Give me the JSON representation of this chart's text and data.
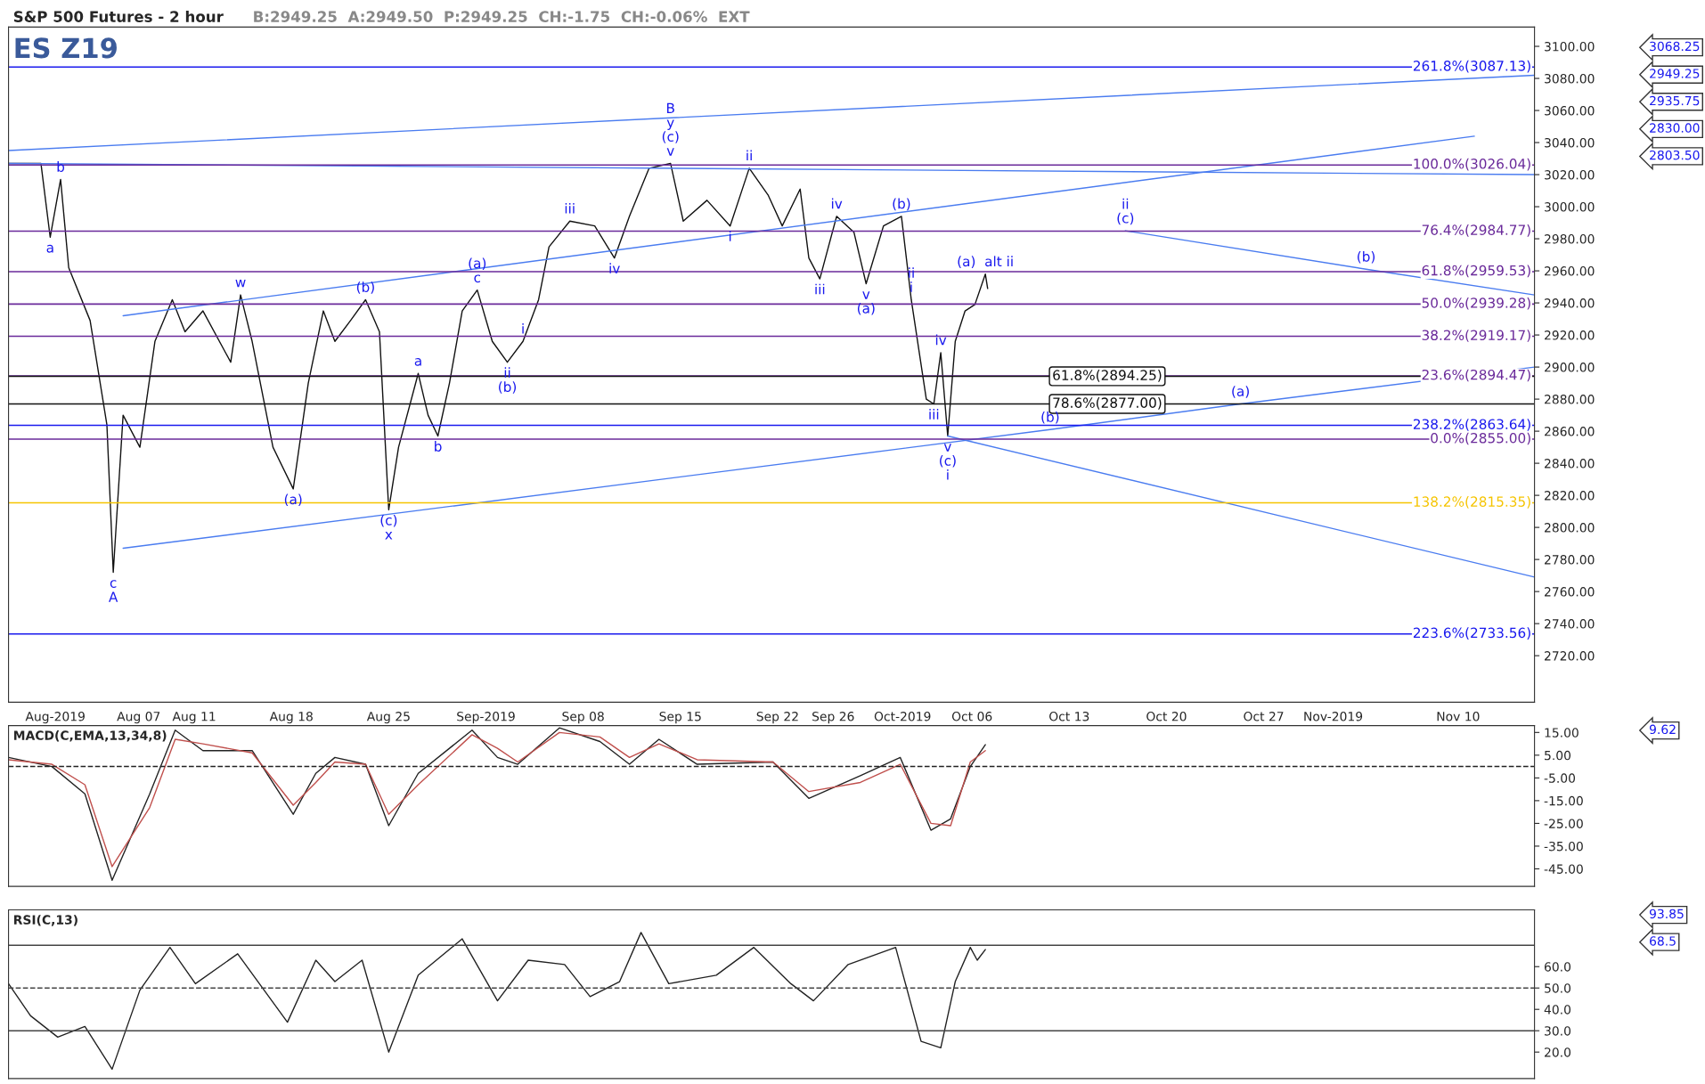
{
  "chart_data": [
    {
      "type": "line",
      "title": "S&P 500 Futures - 2 hour",
      "subtitle": "B:2949.25  A:2949.50  P:2949.25  CH:-1.75  CH:-0.06%  EXT",
      "xlim": [
        "2019-07-28T15:00",
        "2019-11-15T12:00"
      ],
      "ylim": [
        2691,
        3112
      ],
      "xticks": [
        {
          "value": "2019-08-01",
          "label": "Aug-2019"
        },
        {
          "value": "2019-08-07",
          "label": "Aug 07"
        },
        {
          "value": "2019-08-11",
          "label": "Aug 11"
        },
        {
          "value": "2019-08-18",
          "label": "Aug 18"
        },
        {
          "value": "2019-08-25",
          "label": "Aug 25"
        },
        {
          "value": "2019-09-01",
          "label": "Sep-2019"
        },
        {
          "value": "2019-09-08",
          "label": "Sep 08"
        },
        {
          "value": "2019-09-15",
          "label": "Sep 15"
        },
        {
          "value": "2019-09-22",
          "label": "Sep 22"
        },
        {
          "value": "2019-09-26",
          "label": "Sep 26"
        },
        {
          "value": "2019-10-01",
          "label": "Oct-2019"
        },
        {
          "value": "2019-10-06",
          "label": "Oct 06"
        },
        {
          "value": "2019-10-13",
          "label": "Oct 13"
        },
        {
          "value": "2019-10-20",
          "label": "Oct 20"
        },
        {
          "value": "2019-10-27",
          "label": "Oct 27"
        },
        {
          "value": "2019-11-01",
          "label": "Nov-2019"
        },
        {
          "value": "2019-11-10",
          "label": "Nov 10"
        }
      ],
      "yticks": [
        {
          "value": 2720,
          "label": "2720.00"
        },
        {
          "value": 2740,
          "label": "2740.00"
        },
        {
          "value": 2760,
          "label": "2760.00"
        },
        {
          "value": 2780,
          "label": "2780.00"
        },
        {
          "value": 2800,
          "label": "2800.00"
        },
        {
          "value": 2820,
          "label": "2820.00"
        },
        {
          "value": 2840,
          "label": "2840.00"
        },
        {
          "value": 2860,
          "label": "2860.00"
        },
        {
          "value": 2880,
          "label": "2880.00"
        },
        {
          "value": 2900,
          "label": "2900.00"
        },
        {
          "value": 2920,
          "label": "2920.00"
        },
        {
          "value": 2940,
          "label": "2940.00"
        },
        {
          "value": 2960,
          "label": "2960.00"
        },
        {
          "value": 2980,
          "label": "2980.00"
        },
        {
          "value": 3000,
          "label": "3000.00"
        },
        {
          "value": 3020,
          "label": "3020.00"
        },
        {
          "value": 3040,
          "label": "3040.00"
        },
        {
          "value": 3060,
          "label": "3060.00"
        },
        {
          "value": 3080,
          "label": "3080.00"
        },
        {
          "value": 3100,
          "label": "3100.00"
        }
      ],
      "series": [
        {
          "color": "#111111",
          "x": [
            "2019-07-28T15:00",
            "2019-07-30T23:00",
            "2019-07-31T15:00",
            "2019-08-01T09:00",
            "2019-08-01T23:00",
            "2019-08-03T12:00",
            "2019-08-04T17:00",
            "2019-08-05T04:00",
            "2019-08-05T21:00",
            "2019-08-07T02:00",
            "2019-08-08T04:00",
            "2019-08-09T10:00",
            "2019-08-10T08:00",
            "2019-08-11T15:00",
            "2019-08-13T15:00",
            "2019-08-14T08:00",
            "2019-08-15T04:00",
            "2019-08-16T16:00",
            "2019-08-18T03:00",
            "2019-08-19T05:00",
            "2019-08-20T07:00",
            "2019-08-21T03:00",
            "2019-08-22T06:00",
            "2019-08-23T08:00",
            "2019-08-24T08:00",
            "2019-08-25T00:00",
            "2019-08-25T17:00",
            "2019-08-27T03:00",
            "2019-08-27T20:00",
            "2019-08-28T13:00",
            "2019-08-29T09:00",
            "2019-08-30T07:00",
            "2019-08-31T09:00",
            "2019-09-01T11:00",
            "2019-09-02T13:00",
            "2019-09-03T16:00",
            "2019-09-04T19:00",
            "2019-09-05T13:00",
            "2019-09-07T01:00",
            "2019-09-08T20:00",
            "2019-09-10T06:00",
            "2019-09-11T08:00",
            "2019-09-12T18:00",
            "2019-09-14T07:00",
            "2019-09-15T05:00",
            "2019-09-16T22:00",
            "2019-09-18T14:00",
            "2019-09-19T23:00",
            "2019-09-21T08:00",
            "2019-09-22T08:00",
            "2019-09-23T15:00",
            "2019-09-24T06:00",
            "2019-09-25T01:00",
            "2019-09-26T06:00",
            "2019-09-27T12:00",
            "2019-09-28T09:00",
            "2019-09-29T15:00",
            "2019-09-30T22:00",
            "2019-10-01T15:00",
            "2019-10-02T17:00",
            "2019-10-03T06:00",
            "2019-10-03T18:00",
            "2019-10-04T06:00",
            "2019-10-04T19:00",
            "2019-10-05T12:00",
            "2019-10-06T05:00",
            "2019-10-06T23:00",
            "2019-10-07T03:00"
          ],
          "values": [
            3027,
            3027,
            2981,
            3017,
            2962,
            2929,
            2864,
            2772,
            2870,
            2850,
            2916,
            2942,
            2922,
            2935,
            2903,
            2945,
            2916,
            2850,
            2824,
            2890,
            2935,
            2916,
            2929,
            2942,
            2922,
            2811,
            2850,
            2896,
            2870,
            2857,
            2890,
            2935,
            2948,
            2916,
            2903,
            2916,
            2942,
            2975,
            2991,
            2988,
            2968,
            2994,
            3024,
            3027,
            2991,
            3004,
            2988,
            3024,
            3007,
            2988,
            3011,
            2968,
            2955,
            2994,
            2984,
            2952,
            2988,
            2994,
            2942,
            2880,
            2877,
            2909,
            2857,
            2916,
            2935,
            2939,
            2958,
            2949
          ]
        },
        {
          "color": "#4a7cf0",
          "x": [
            "2019-07-28T15:00",
            "2019-11-15T12:00"
          ],
          "values": [
            3027,
            3020
          ]
        },
        {
          "color": "#4a7cf0",
          "x": [
            "2019-07-28T15:00",
            "2019-11-15T12:00"
          ],
          "values": [
            3035,
            3082
          ]
        },
        {
          "color": "#4a7cf0",
          "x": [
            "2019-08-05T21:00",
            "2019-11-11T04:00"
          ],
          "values": [
            2932,
            3044
          ]
        },
        {
          "color": "#4a7cf0",
          "x": [
            "2019-08-05T21:00",
            "2019-10-11T15:00",
            "2019-10-25T08:00",
            "2019-11-15T12:00"
          ],
          "values": [
            2787,
            2861,
            2877,
            2900
          ]
        },
        {
          "color": "#4a7cf0",
          "x": [
            "2019-10-04T06:00",
            "2019-11-15T12:00"
          ],
          "values": [
            2857,
            2769
          ]
        },
        {
          "color": "#4a7cf0",
          "x": [
            "2019-10-17T01:00",
            "2019-11-03T09:00",
            "2019-11-15T12:00"
          ],
          "values": [
            2985,
            2961,
            2945
          ]
        }
      ],
      "ref_lines": [
        {
          "axis": "y",
          "value": 3087.13,
          "label": "261.8%(3087.13)",
          "color": "#1a1aee"
        },
        {
          "axis": "y",
          "value": 3026.04,
          "label": "100.0%(3026.04)",
          "color": "#6a2a9a"
        },
        {
          "axis": "y",
          "value": 2984.77,
          "label": "76.4%(2984.77)",
          "color": "#6a2a9a"
        },
        {
          "axis": "y",
          "value": 2959.53,
          "label": "61.8%(2959.53)",
          "color": "#6a2a9a"
        },
        {
          "axis": "y",
          "value": 2939.28,
          "label": "50.0%(2939.28)",
          "color": "#6a2a9a"
        },
        {
          "axis": "y",
          "value": 2919.17,
          "label": "38.2%(2919.17)",
          "color": "#6a2a9a"
        },
        {
          "axis": "y",
          "value": 2894.47,
          "label": "23.6%(2894.47)",
          "color": "#6a2a9a"
        },
        {
          "axis": "y",
          "value": 2894.25,
          "label": "61.8%(2894.25)",
          "color": "#111111"
        },
        {
          "axis": "y",
          "value": 2877.0,
          "label": "78.6%(2877.00)",
          "color": "#111111"
        },
        {
          "axis": "y",
          "value": 2863.64,
          "label": "238.2%(2863.64)",
          "color": "#1a1aee"
        },
        {
          "axis": "y",
          "value": 2855.0,
          "label": "0.0%(2855.00)",
          "color": "#6a2a9a"
        },
        {
          "axis": "y",
          "value": 2815.35,
          "label": "138.2%(2815.35)",
          "color": "#f5c400"
        },
        {
          "axis": "y",
          "value": 2733.56,
          "label": "223.6%(2733.56)",
          "color": "#1a1aee"
        }
      ],
      "annotations": [
        "ES Z19",
        "3068.25",
        "2949.25",
        "2935.75",
        "2830.00",
        "2803.50",
        {
          "text": "B\ny\n(c)\nv",
          "x": "2019-09-14T07:00",
          "y": 3027
        },
        {
          "text": "b",
          "x": "2019-08-01T09:00",
          "y": 3017
        },
        {
          "text": "a",
          "x": "2019-07-31T15:00",
          "y": 2981
        },
        {
          "text": "c\nA",
          "x": "2019-08-05T04:00",
          "y": 2772
        },
        {
          "text": "w",
          "x": "2019-08-14T08:00",
          "y": 2945
        },
        {
          "text": "(b)",
          "x": "2019-08-23T08:00",
          "y": 2942
        },
        {
          "text": "(a)",
          "x": "2019-08-18T03:00",
          "y": 2824
        },
        {
          "text": "(c)\nx",
          "x": "2019-08-25T00:00",
          "y": 2811
        },
        {
          "text": "a",
          "x": "2019-08-27T03:00",
          "y": 2896
        },
        {
          "text": "b",
          "x": "2019-08-28T13:00",
          "y": 2857
        },
        {
          "text": "(a)\nc",
          "x": "2019-08-31T09:00",
          "y": 2948
        },
        {
          "text": "i",
          "x": "2019-09-03T16:00",
          "y": 2916
        },
        {
          "text": "ii\n(b)",
          "x": "2019-09-02T13:00",
          "y": 2903
        },
        {
          "text": "iii",
          "x": "2019-09-07T01:00",
          "y": 2991
        },
        {
          "text": "iv",
          "x": "2019-09-10T06:00",
          "y": 2968
        },
        {
          "text": "ii",
          "x": "2019-09-19T23:00",
          "y": 3024
        },
        {
          "text": "i",
          "x": "2019-09-18T14:00",
          "y": 2988
        },
        {
          "text": "iii",
          "x": "2019-09-25T01:00",
          "y": 2955
        },
        {
          "text": "iv",
          "x": "2019-09-26T06:00",
          "y": 2994
        },
        {
          "text": "v\n(a)",
          "x": "2019-09-28T09:00",
          "y": 2952
        },
        {
          "text": "(b)",
          "x": "2019-09-30T22:00",
          "y": 2994
        },
        {
          "text": "ii\ni",
          "x": "2019-10-01T15:00",
          "y": 2942
        },
        {
          "text": "iii",
          "x": "2019-10-03T06:00",
          "y": 2877
        },
        {
          "text": "iv",
          "x": "2019-10-03T18:00",
          "y": 2909
        },
        {
          "text": "v\n(c)\ni",
          "x": "2019-10-04T06:00",
          "y": 2857
        },
        {
          "text": "(a)  alt ii",
          "x": "2019-10-06T23:00",
          "y": 2958
        },
        {
          "text": "ii\n(c)",
          "x": "2019-10-17T01:00",
          "y": 2985
        },
        {
          "text": "(b)",
          "x": "2019-11-03T09:00",
          "y": 2961
        },
        {
          "text": "(b)",
          "x": "2019-10-11T15:00",
          "y": 2861
        },
        {
          "text": "(a)",
          "x": "2019-10-25T08:00",
          "y": 2877
        }
      ]
    },
    {
      "type": "line",
      "title": "MACD(C,EMA,13,34,8)",
      "xlim": [
        "2019-07-28T15:00",
        "2019-11-15T12:00"
      ],
      "ylim": [
        -52.7,
        18
      ],
      "tick_labels": "y",
      "yticks": [
        {
          "value": 15,
          "label": "15.00"
        },
        {
          "value": 5,
          "label": "5.00"
        },
        {
          "value": -5,
          "label": "-5.00"
        },
        {
          "value": -15,
          "label": "-15.00"
        },
        {
          "value": -25,
          "label": "-25.00"
        },
        {
          "value": -35,
          "label": "-35.00"
        },
        {
          "value": -45,
          "label": "-45.00"
        }
      ],
      "series": [
        {
          "color": "#222222",
          "x": [
            "2019-07-28T15:00",
            "2019-07-31T18:00",
            "2019-08-03T03:00",
            "2019-08-05T02:00",
            "2019-08-07T19:00",
            "2019-08-09T15:00",
            "2019-08-11T15:00",
            "2019-08-15T04:00",
            "2019-08-18T03:00",
            "2019-08-19T18:00",
            "2019-08-21T03:00",
            "2019-08-23T08:00",
            "2019-08-25T00:00",
            "2019-08-27T03:00",
            "2019-08-31T00:00",
            "2019-09-01T20:00",
            "2019-09-03T07:00",
            "2019-09-06T07:00",
            "2019-09-09T05:00",
            "2019-09-11T08:00",
            "2019-09-13T11:00",
            "2019-09-16T05:00",
            "2019-09-21T16:00",
            "2019-09-24T06:00",
            "2019-09-27T23:00",
            "2019-09-30T20:00",
            "2019-10-03T01:00",
            "2019-10-04T11:00",
            "2019-10-05T21:00",
            "2019-10-06T23:00"
          ],
          "values": [
            4,
            0,
            -12,
            -50,
            -12,
            16,
            7,
            7,
            -21,
            -3,
            4,
            1,
            -26,
            -3,
            16,
            4,
            1,
            17,
            11,
            1,
            12,
            1,
            2,
            -14,
            -4,
            4,
            -28,
            -23,
            0,
            9.6
          ]
        },
        {
          "color": "#c0504d",
          "x": [
            "2019-07-28T15:00",
            "2019-07-31T18:00",
            "2019-08-03T03:00",
            "2019-08-05T02:00",
            "2019-08-07T19:00",
            "2019-08-09T15:00",
            "2019-08-11T15:00",
            "2019-08-15T04:00",
            "2019-08-18T03:00",
            "2019-08-19T18:00",
            "2019-08-21T03:00",
            "2019-08-23T08:00",
            "2019-08-25T00:00",
            "2019-08-27T03:00",
            "2019-08-31T00:00",
            "2019-09-01T20:00",
            "2019-09-03T07:00",
            "2019-09-06T07:00",
            "2019-09-09T05:00",
            "2019-09-11T08:00",
            "2019-09-13T11:00",
            "2019-09-16T05:00",
            "2019-09-21T16:00",
            "2019-09-24T06:00",
            "2019-09-27T23:00",
            "2019-09-30T20:00",
            "2019-10-03T01:00",
            "2019-10-04T11:00",
            "2019-10-05T21:00",
            "2019-10-06T23:00"
          ],
          "values": [
            3,
            1,
            -8,
            -44,
            -18,
            12,
            10,
            6,
            -17,
            -7,
            2,
            1,
            -21,
            -8,
            14,
            8,
            2,
            15,
            13,
            4,
            10,
            3,
            2,
            -11,
            -7,
            1,
            -25,
            -26,
            2,
            7
          ]
        }
      ],
      "ref_lines": [
        {
          "axis": "y",
          "value": 0,
          "color": "#222222",
          "line_style": "dashed"
        }
      ],
      "annotations": [
        "9.62"
      ]
    },
    {
      "type": "line",
      "title": "RSI(C,13)",
      "xlim": [
        "2019-07-28T15:00",
        "2019-11-15T12:00"
      ],
      "ylim": [
        7.6,
        86.6
      ],
      "tick_labels": "y",
      "yticks": [
        {
          "value": 20,
          "label": "20.0"
        },
        {
          "value": 30,
          "label": "30.0"
        },
        {
          "value": 40,
          "label": "40.0"
        },
        {
          "value": 50,
          "label": "50.0"
        },
        {
          "value": 60,
          "label": "60.0"
        }
      ],
      "series": [
        {
          "color": "#222222",
          "x": [
            "2019-07-28T15:00",
            "2019-07-30T05:00",
            "2019-08-01T04:00",
            "2019-08-03T03:00",
            "2019-08-05T02:00",
            "2019-08-07T02:00",
            "2019-08-09T06:00",
            "2019-08-11T02:00",
            "2019-08-14T03:00",
            "2019-08-17T17:00",
            "2019-08-19T18:00",
            "2019-08-21T03:00",
            "2019-08-23T02:00",
            "2019-08-25T00:00",
            "2019-08-27T03:00",
            "2019-08-30T07:00",
            "2019-09-01T20:00",
            "2019-09-04T01:00",
            "2019-09-06T16:00",
            "2019-09-08T12:00",
            "2019-09-10T15:00",
            "2019-09-12T04:00",
            "2019-09-14T04:00",
            "2019-09-17T14:00",
            "2019-09-20T07:00",
            "2019-09-22T23:00",
            "2019-09-24T14:00",
            "2019-09-27T02:00",
            "2019-09-30T12:00",
            "2019-10-02T08:00",
            "2019-10-03T18:00",
            "2019-10-04T19:00",
            "2019-10-05T21:00",
            "2019-10-06T09:00",
            "2019-10-06T23:00"
          ],
          "values": [
            52,
            37,
            27,
            32,
            12,
            49,
            69,
            52,
            66,
            34,
            63,
            53,
            63,
            20,
            56,
            73,
            44,
            63,
            61,
            46,
            53,
            76,
            52,
            56,
            69,
            52,
            44,
            61,
            69,
            25,
            22,
            53,
            69,
            63,
            68
          ]
        }
      ],
      "ref_lines": [
        {
          "axis": "y",
          "value": 70,
          "color": "#444444",
          "line_style": "solid"
        },
        {
          "axis": "y",
          "value": 50,
          "color": "#444444",
          "line_style": "dashed"
        },
        {
          "axis": "y",
          "value": 30,
          "color": "#444444",
          "line_style": "solid"
        }
      ],
      "annotations": [
        "93.85",
        "68.5"
      ]
    }
  ]
}
